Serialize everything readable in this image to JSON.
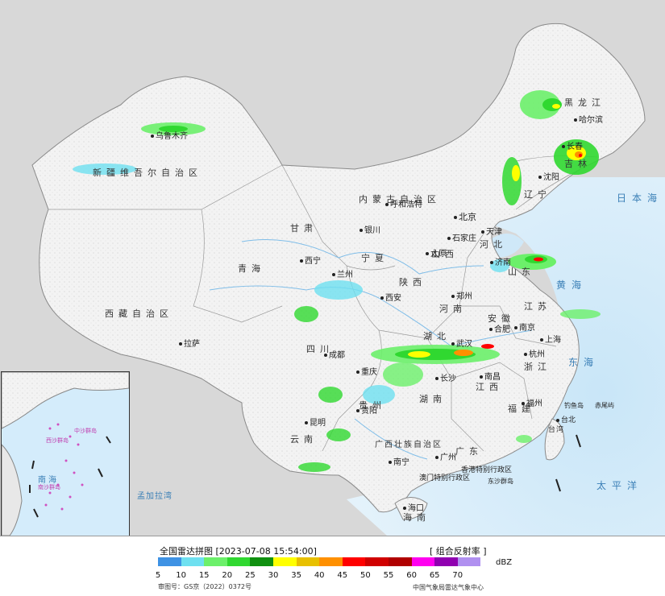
{
  "map": {
    "provinces": [
      "黑龙江",
      "吉林",
      "辽宁",
      "内蒙古自治区",
      "新疆维吾尔自治区",
      "西藏自治区",
      "青海",
      "甘肃",
      "四川",
      "云南",
      "贵州",
      "湖南",
      "湖北",
      "河南",
      "河北",
      "山西",
      "陕西",
      "宁夏",
      "山东",
      "江苏",
      "安徽",
      "浙江",
      "江西",
      "福建",
      "广东",
      "广西壮族自治区",
      "海南",
      "台湾",
      "北京",
      "天津",
      "上海",
      "重庆"
    ],
    "cities": [
      "乌鲁木齐",
      "哈尔滨",
      "长春",
      "沈阳",
      "呼和浩特",
      "北京",
      "天津",
      "石家庄",
      "太原",
      "银川",
      "西宁",
      "兰州",
      "西安",
      "郑州",
      "济南",
      "南京",
      "上海",
      "合肥",
      "武汉",
      "长沙",
      "杭州",
      "南昌",
      "福州",
      "台北",
      "广州",
      "南宁",
      "成都",
      "重庆",
      "贵阳",
      "昆明",
      "拉萨",
      "海口",
      "香港特别行政区",
      "澳门特别行政区"
    ],
    "seas": [
      "日本海",
      "黄海",
      "东海",
      "太平洋",
      "孟加拉湾",
      "南海"
    ],
    "islands": [
      "钓鱼岛",
      "赤尾屿",
      "东沙群岛",
      "中沙群岛",
      "西沙群岛",
      "南沙群岛"
    ]
  },
  "legend": {
    "title": "全国雷达拼图 [2023-07-08 15:54:00]",
    "product": "[ 组合反射率 ]",
    "unit": "dBZ",
    "ticks": [
      "5",
      "10",
      "15",
      "20",
      "25",
      "30",
      "35",
      "40",
      "45",
      "50",
      "55",
      "60",
      "65",
      "70"
    ],
    "colors": [
      "#3e92e4",
      "#6ee0f0",
      "#6cf06a",
      "#30d830",
      "#109010",
      "#ffff00",
      "#e8c000",
      "#ff9000",
      "#ff0000",
      "#d00000",
      "#b00000",
      "#ff00f0",
      "#9000b0",
      "#b090f0"
    ],
    "review_no": "审图号：GS京（2022）0372号",
    "center": "中国气象局雷达气象中心"
  }
}
